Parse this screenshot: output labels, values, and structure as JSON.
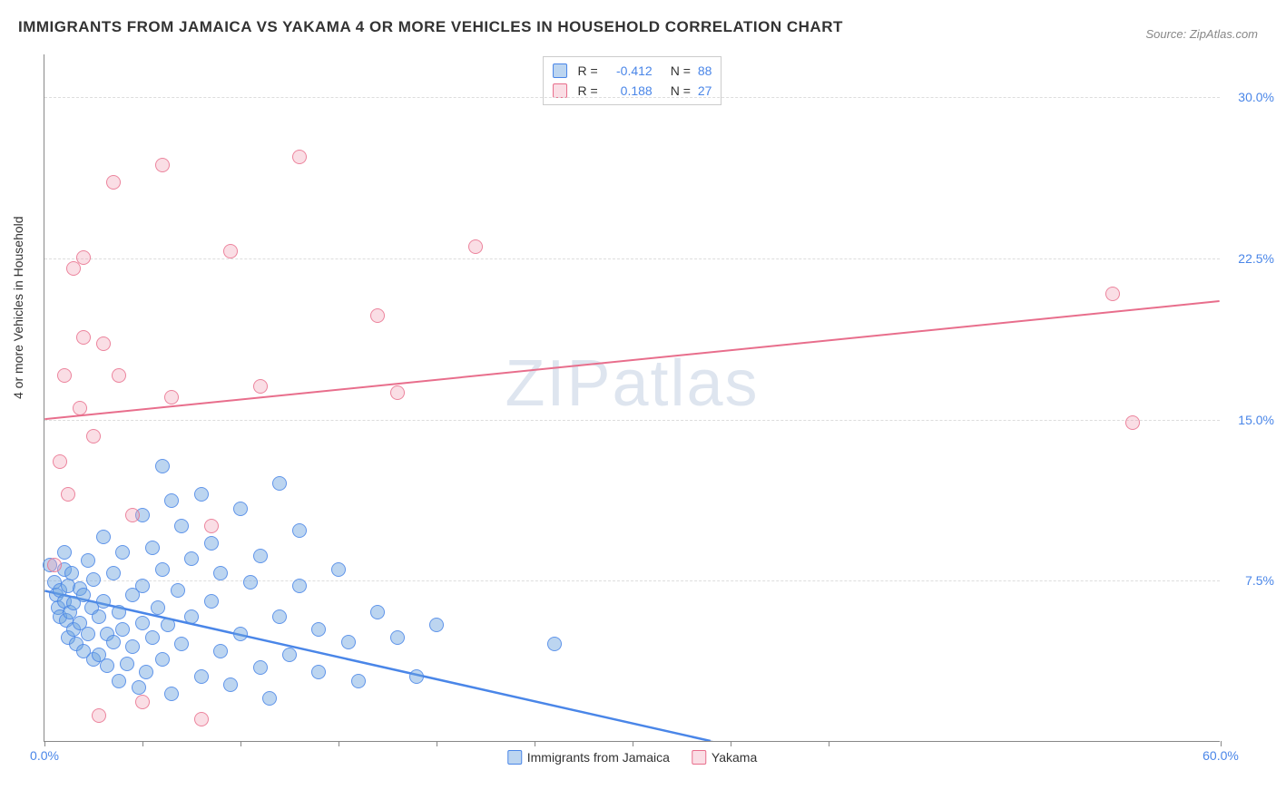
{
  "title": "IMMIGRANTS FROM JAMAICA VS YAKAMA 4 OR MORE VEHICLES IN HOUSEHOLD CORRELATION CHART",
  "source": "Source: ZipAtlas.com",
  "watermark": "ZIPatlas",
  "ylabel": "4 or more Vehicles in Household",
  "chart": {
    "type": "scatter",
    "xlim": [
      0,
      60
    ],
    "ylim": [
      0,
      32
    ],
    "x_ticks": [
      0,
      5,
      10,
      15,
      20,
      25,
      30,
      35,
      40,
      60
    ],
    "x_tick_labels": {
      "0": "0.0%",
      "60": "60.0%"
    },
    "y_ticks": [
      7.5,
      15.0,
      22.5,
      30.0
    ],
    "y_tick_labels": [
      "7.5%",
      "15.0%",
      "22.5%",
      "30.0%"
    ],
    "background_color": "#ffffff",
    "grid_color": "#dddddd",
    "colors": {
      "blue_fill": "rgba(106,162,222,0.45)",
      "blue_stroke": "#4a86e8",
      "pink_fill": "rgba(242,160,180,0.35)",
      "pink_stroke": "#e86e8c",
      "axis": "#888888",
      "tick_text": "#4a86e8"
    },
    "marker_radius": 8,
    "series": [
      {
        "name": "Immigrants from Jamaica",
        "color": "blue",
        "R": "-0.412",
        "N": "88",
        "trend": {
          "x1": 0,
          "y1": 7.0,
          "x2": 34,
          "y2": 0.0,
          "dashed_extension_to_x": 40,
          "width": 2.5
        },
        "points": [
          [
            0.3,
            8.2
          ],
          [
            0.5,
            7.4
          ],
          [
            0.6,
            6.8
          ],
          [
            0.7,
            6.2
          ],
          [
            0.8,
            7.0
          ],
          [
            0.8,
            5.8
          ],
          [
            1.0,
            8.0
          ],
          [
            1.0,
            6.5
          ],
          [
            1.1,
            5.6
          ],
          [
            1.2,
            7.2
          ],
          [
            1.2,
            4.8
          ],
          [
            1.3,
            6.0
          ],
          [
            1.4,
            7.8
          ],
          [
            1.5,
            5.2
          ],
          [
            1.5,
            6.4
          ],
          [
            1.6,
            4.5
          ],
          [
            1.8,
            7.1
          ],
          [
            1.8,
            5.5
          ],
          [
            2.0,
            6.8
          ],
          [
            2.0,
            4.2
          ],
          [
            2.2,
            8.4
          ],
          [
            2.2,
            5.0
          ],
          [
            2.4,
            6.2
          ],
          [
            2.5,
            3.8
          ],
          [
            2.5,
            7.5
          ],
          [
            2.8,
            5.8
          ],
          [
            2.8,
            4.0
          ],
          [
            3.0,
            9.5
          ],
          [
            3.0,
            6.5
          ],
          [
            3.2,
            5.0
          ],
          [
            3.2,
            3.5
          ],
          [
            3.5,
            7.8
          ],
          [
            3.5,
            4.6
          ],
          [
            3.8,
            6.0
          ],
          [
            3.8,
            2.8
          ],
          [
            4.0,
            8.8
          ],
          [
            4.0,
            5.2
          ],
          [
            4.2,
            3.6
          ],
          [
            4.5,
            6.8
          ],
          [
            4.5,
            4.4
          ],
          [
            4.8,
            2.5
          ],
          [
            5.0,
            10.5
          ],
          [
            5.0,
            7.2
          ],
          [
            5.0,
            5.5
          ],
          [
            5.2,
            3.2
          ],
          [
            5.5,
            9.0
          ],
          [
            5.5,
            4.8
          ],
          [
            5.8,
            6.2
          ],
          [
            6.0,
            12.8
          ],
          [
            6.0,
            8.0
          ],
          [
            6.0,
            3.8
          ],
          [
            6.3,
            5.4
          ],
          [
            6.5,
            11.2
          ],
          [
            6.5,
            2.2
          ],
          [
            6.8,
            7.0
          ],
          [
            7.0,
            10.0
          ],
          [
            7.0,
            4.5
          ],
          [
            7.5,
            8.5
          ],
          [
            7.5,
            5.8
          ],
          [
            8.0,
            11.5
          ],
          [
            8.0,
            3.0
          ],
          [
            8.5,
            6.5
          ],
          [
            8.5,
            9.2
          ],
          [
            9.0,
            4.2
          ],
          [
            9.0,
            7.8
          ],
          [
            9.5,
            2.6
          ],
          [
            10.0,
            10.8
          ],
          [
            10.0,
            5.0
          ],
          [
            10.5,
            7.4
          ],
          [
            11.0,
            3.4
          ],
          [
            11.0,
            8.6
          ],
          [
            11.5,
            2.0
          ],
          [
            12.0,
            12.0
          ],
          [
            12.0,
            5.8
          ],
          [
            12.5,
            4.0
          ],
          [
            13.0,
            7.2
          ],
          [
            13.0,
            9.8
          ],
          [
            14.0,
            5.2
          ],
          [
            14.0,
            3.2
          ],
          [
            15.0,
            8.0
          ],
          [
            15.5,
            4.6
          ],
          [
            16.0,
            2.8
          ],
          [
            17.0,
            6.0
          ],
          [
            18.0,
            4.8
          ],
          [
            19.0,
            3.0
          ],
          [
            20.0,
            5.4
          ],
          [
            26.0,
            4.5
          ],
          [
            1.0,
            8.8
          ]
        ]
      },
      {
        "name": "Yakama",
        "color": "pink",
        "R": "0.188",
        "N": "27",
        "trend": {
          "x1": 0,
          "y1": 15.0,
          "x2": 60,
          "y2": 20.5,
          "width": 2
        },
        "points": [
          [
            0.5,
            8.2
          ],
          [
            0.8,
            13.0
          ],
          [
            1.0,
            17.0
          ],
          [
            1.2,
            11.5
          ],
          [
            1.5,
            22.0
          ],
          [
            1.8,
            15.5
          ],
          [
            2.0,
            22.5
          ],
          [
            2.0,
            18.8
          ],
          [
            2.5,
            14.2
          ],
          [
            3.0,
            18.5
          ],
          [
            3.5,
            26.0
          ],
          [
            3.8,
            17.0
          ],
          [
            4.5,
            10.5
          ],
          [
            5.0,
            1.8
          ],
          [
            6.0,
            26.8
          ],
          [
            6.5,
            16.0
          ],
          [
            8.0,
            1.0
          ],
          [
            8.5,
            10.0
          ],
          [
            9.5,
            22.8
          ],
          [
            11.0,
            16.5
          ],
          [
            13.0,
            27.2
          ],
          [
            17.0,
            19.8
          ],
          [
            18.0,
            16.2
          ],
          [
            22.0,
            23.0
          ],
          [
            54.5,
            20.8
          ],
          [
            55.5,
            14.8
          ],
          [
            2.8,
            1.2
          ]
        ]
      }
    ]
  },
  "legend_bottom": [
    "Immigrants from Jamaica",
    "Yakama"
  ]
}
